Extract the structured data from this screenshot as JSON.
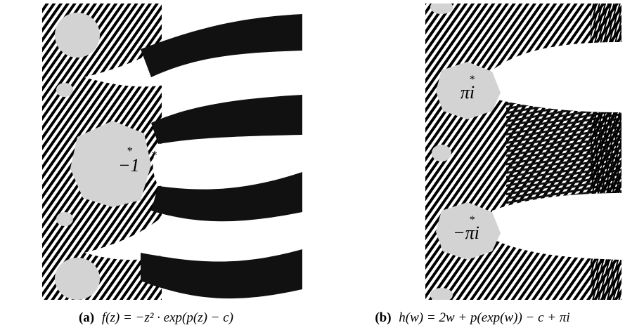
{
  "panels": [
    {
      "annotations": [
        "*",
        "−1",
        "*"
      ],
      "caption": {
        "label": "(a)",
        "formula": "f(z) = −z² · exp(p(z) − c)"
      }
    },
    {
      "annotations": [
        "*",
        "πi",
        "*",
        "−πi"
      ],
      "caption": {
        "label": "(b)",
        "formula": "h(w) = 2w + p(exp(w)) − c + πi"
      }
    }
  ]
}
